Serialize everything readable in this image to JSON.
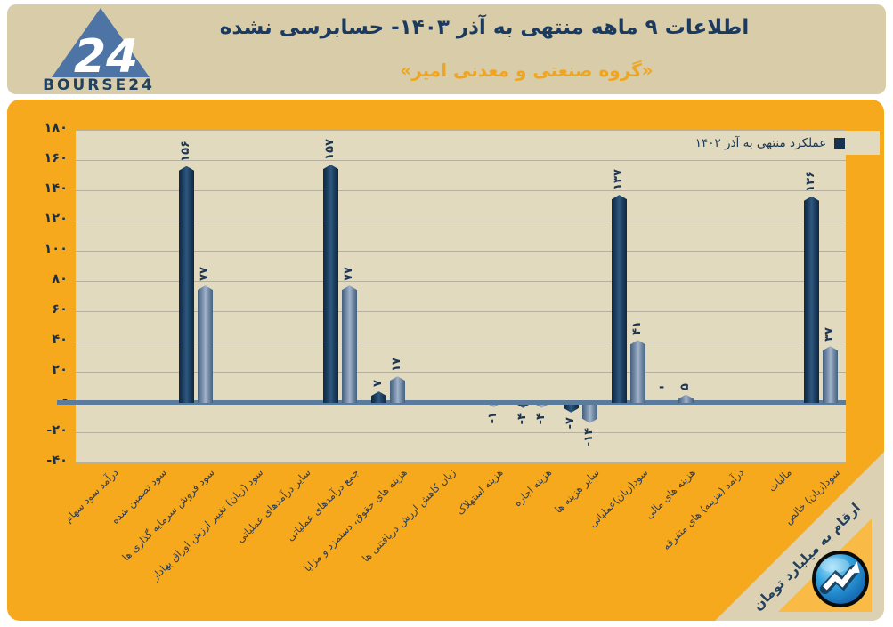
{
  "header": {
    "logo": {
      "brand": "BOURSE24",
      "number": "24"
    },
    "title": "اطلاعات ۹ ماهه منتهی به آذر ۱۴۰۳- حسابرسی نشده",
    "subtitle": "«گروه صنعتی و معدنی امیر»"
  },
  "chart": {
    "footnote": "ارقام به میلیارد تومان",
    "colors": {
      "card_background": "#f7a91d",
      "plot_background": "#e2dabf",
      "header_background": "#d8cca9",
      "title_navy": "#1a3a60",
      "subtitle_orange": "#f0a51e",
      "zero_axis": "#5a7b9c",
      "series_dark": "#16324e",
      "series_light": "#7e94b0",
      "corner_triangle": "#f9bb45"
    }
  },
  "chart_data": {
    "type": "bar",
    "title": "اطلاعات ۹ ماهه منتهی به آذر ۱۴۰۳- حسابرسی نشده «گروه صنعتی و معدنی امیر»",
    "unit_note": "ارقام به میلیارد تومان",
    "categories": [
      "درآمد سود سهام",
      "سود تضمین شده",
      "سود فروش سرمایه گذاری ها",
      "سود (زیان) تغییر ارزش اوراق بهادار",
      "سایر درآمدهای عملیاتی",
      "جمع درآمدهای عملیاتی",
      "هزینه های حقوق، دستمزد و مزایا",
      "زیان کاهش ارزش دریافتنی ها",
      "هزینه استهلاک",
      "هزینه اجاره",
      "سایر هزینه ها",
      "سود(زیان)عملیاتی",
      "هزینه های مالی",
      "درآمد (هزینه) های متفرقه",
      "مالیات",
      "سود(زیان) خالص"
    ],
    "series": [
      {
        "name": "عملکرد منتهی به آذر ۱۴۰۲",
        "color": "#16324e",
        "values": [
          null,
          null,
          156,
          null,
          null,
          157,
          7,
          null,
          null,
          -4,
          -7,
          137,
          0,
          null,
          null,
          136
        ],
        "labels": [
          "",
          "",
          "۱۵۶",
          "",
          "",
          "۱۵۷",
          "۷",
          "",
          "",
          "-۴",
          "-۷",
          "۱۳۷",
          "-",
          "",
          "",
          "۱۳۶"
        ]
      },
      {
        "name": "",
        "color": "#7e94b0",
        "values": [
          null,
          null,
          77,
          null,
          null,
          77,
          17,
          null,
          -1,
          -4,
          -14,
          41,
          5,
          null,
          null,
          37
        ],
        "labels": [
          "",
          "",
          "۷۷",
          "",
          "",
          "۷۷",
          "۱۷",
          "",
          "-۱",
          "-۴",
          "-۱۴",
          "۴۱",
          "۵",
          "",
          "",
          "۳۷"
        ]
      }
    ],
    "ylim": [
      -40,
      180
    ],
    "yticks": [
      180,
      160,
      140,
      120,
      100,
      80,
      60,
      40,
      20,
      0,
      -20,
      -40
    ],
    "ytick_labels": [
      "۱۸۰",
      "۱۶۰",
      "۱۴۰",
      "۱۲۰",
      "۱۰۰",
      "۸۰",
      "۶۰",
      "۴۰",
      "۲۰",
      "-",
      "-۲۰",
      "-۴۰"
    ],
    "grid": true,
    "legend_position": "top-right"
  }
}
